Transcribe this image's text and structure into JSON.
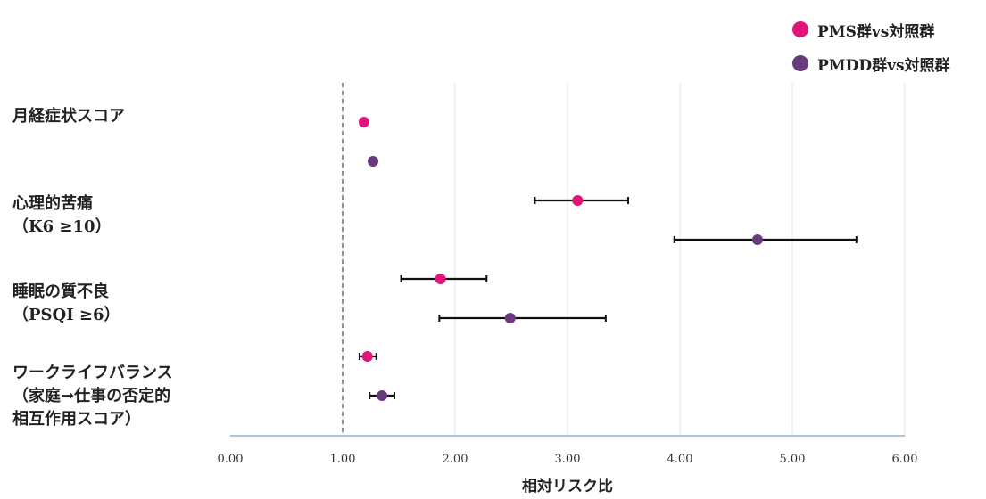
{
  "chart_data": {
    "type": "forest",
    "xlabel": "相対リスク比",
    "xlim": [
      0,
      6
    ],
    "xticks": [
      "0.00",
      "1.00",
      "2.00",
      "3.00",
      "4.00",
      "5.00",
      "6.00"
    ],
    "reference_line": 1.0,
    "grid": "vertical",
    "legend_position": "top-right",
    "categories": [
      "月経症状スコア",
      "心理的苦痛\n（K6 ≥10）",
      "睡眠の質不良\n（PSQI ≥6）",
      "ワークライフバランス\n（家庭→仕事の否定的\n相互作用スコア）"
    ],
    "series": [
      {
        "name": "PMS群vs対照群",
        "color": "#e0157a",
        "values": [
          1.19,
          3.09,
          1.87,
          1.22
        ],
        "ci_low": [
          null,
          2.71,
          1.52,
          1.15
        ],
        "ci_high": [
          null,
          3.54,
          2.28,
          1.3
        ]
      },
      {
        "name": "PMDD群vs対照群",
        "color": "#6a3a7e",
        "values": [
          1.27,
          4.69,
          2.49,
          1.35
        ],
        "ci_low": [
          null,
          3.95,
          1.86,
          1.24
        ],
        "ci_high": [
          null,
          5.57,
          3.34,
          1.46
        ]
      }
    ]
  }
}
